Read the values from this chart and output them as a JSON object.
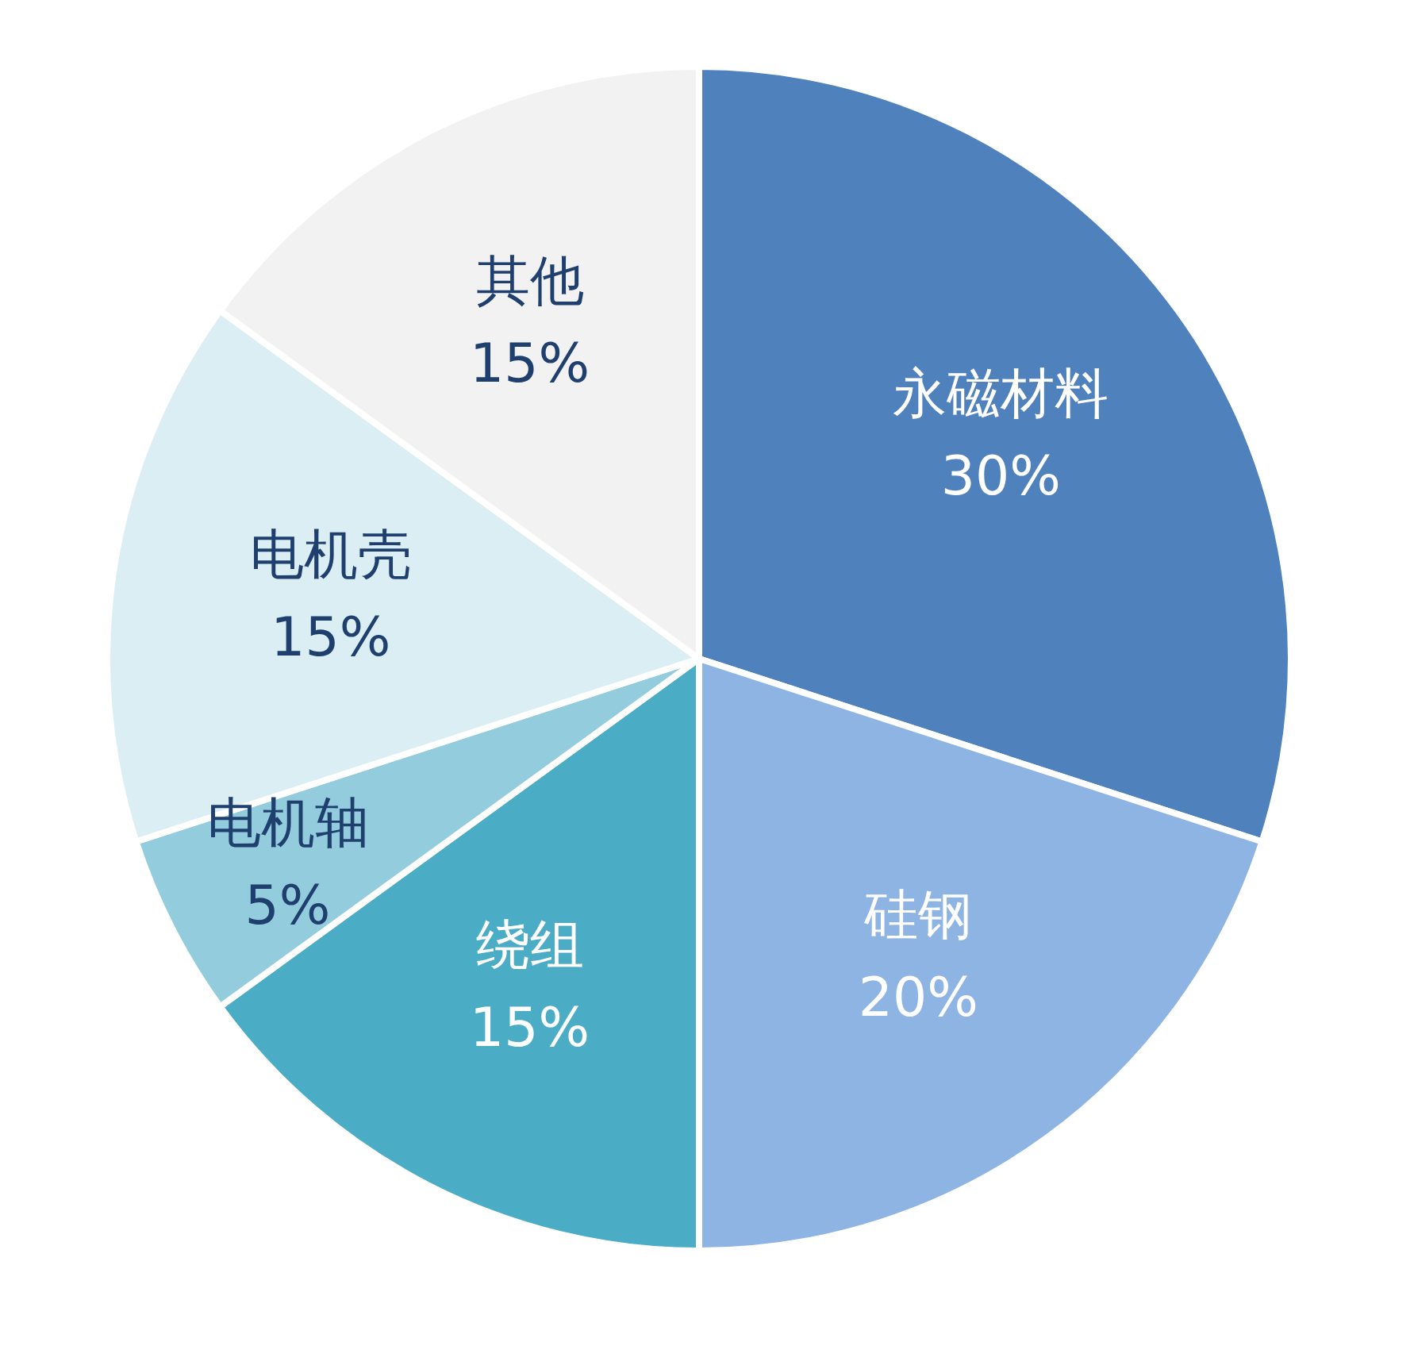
{
  "chart_data": {
    "type": "pie",
    "categories": [
      "永磁材料",
      "硅钢",
      "绕组",
      "电机轴",
      "电机壳",
      "其他"
    ],
    "values": [
      30,
      20,
      15,
      5,
      15,
      15
    ],
    "value_labels": [
      "30%",
      "20%",
      "15%",
      "5%",
      "15%",
      "15%"
    ],
    "colors": [
      "#4f81bd",
      "#8eb4e3",
      "#4bacc6",
      "#93cddd",
      "#dbeef4",
      "#f2f2f2"
    ],
    "legend": false
  }
}
